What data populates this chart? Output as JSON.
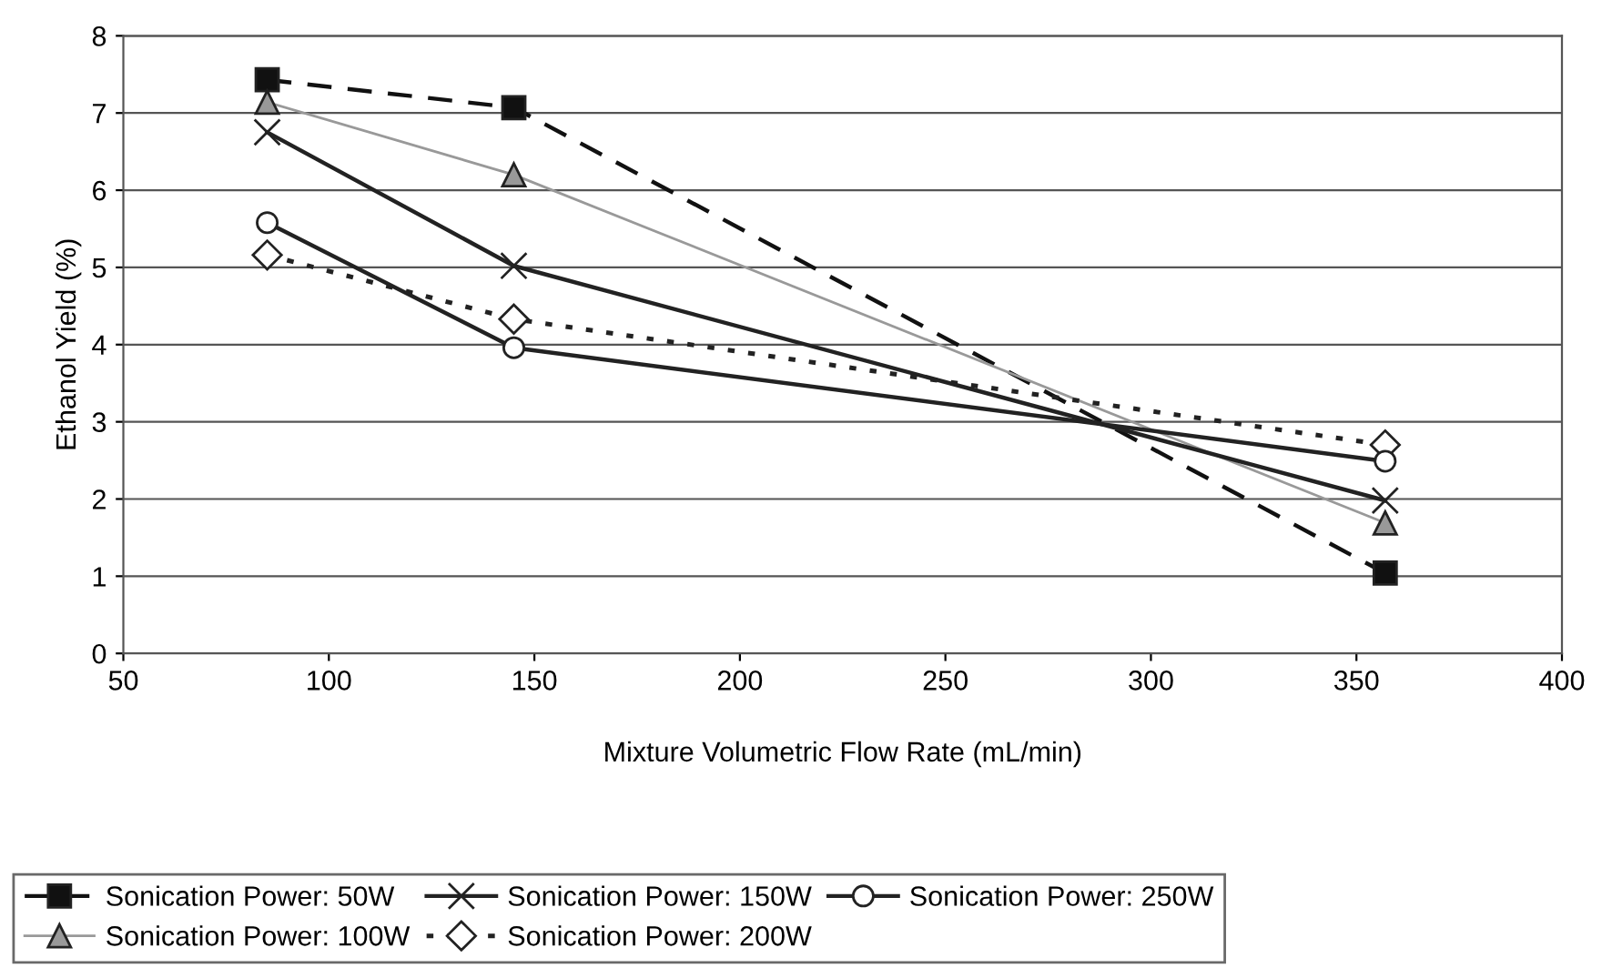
{
  "chart_data": {
    "type": "line",
    "xlabel": "Mixture Volumetric Flow Rate (mL/min)",
    "ylabel": "Ethanol Yield (%)",
    "x": [
      85,
      145,
      357
    ],
    "series": [
      {
        "name": "Sonication Power: 50W",
        "color": "#111111",
        "values": [
          7.43,
          7.07,
          1.04
        ],
        "marker": "square",
        "line_style": "dashed"
      },
      {
        "name": "Sonication Power: 100W",
        "color": "#999999",
        "values": [
          7.14,
          6.2,
          1.69
        ],
        "marker": "triangle",
        "line_style": "solid"
      },
      {
        "name": "Sonication Power: 150W",
        "color": "#222222",
        "values": [
          6.75,
          5.02,
          1.98
        ],
        "marker": "cross",
        "line_style": "solid"
      },
      {
        "name": "Sonication Power: 200W",
        "color": "#222222",
        "values": [
          5.16,
          4.33,
          2.7
        ],
        "marker": "diamond",
        "line_style": "dotted"
      },
      {
        "name": "Sonication Power: 250W",
        "color": "#222222",
        "values": [
          5.58,
          3.96,
          2.49
        ],
        "marker": "circle",
        "line_style": "solid"
      }
    ],
    "xlim": [
      50,
      400
    ],
    "xticks": [
      50,
      100,
      150,
      200,
      250,
      300,
      350,
      400
    ],
    "ylim": [
      0,
      8
    ],
    "yticks": [
      0,
      1,
      2,
      3,
      4,
      5,
      6,
      7,
      8
    ],
    "grid": "y",
    "legend": "bottom"
  }
}
